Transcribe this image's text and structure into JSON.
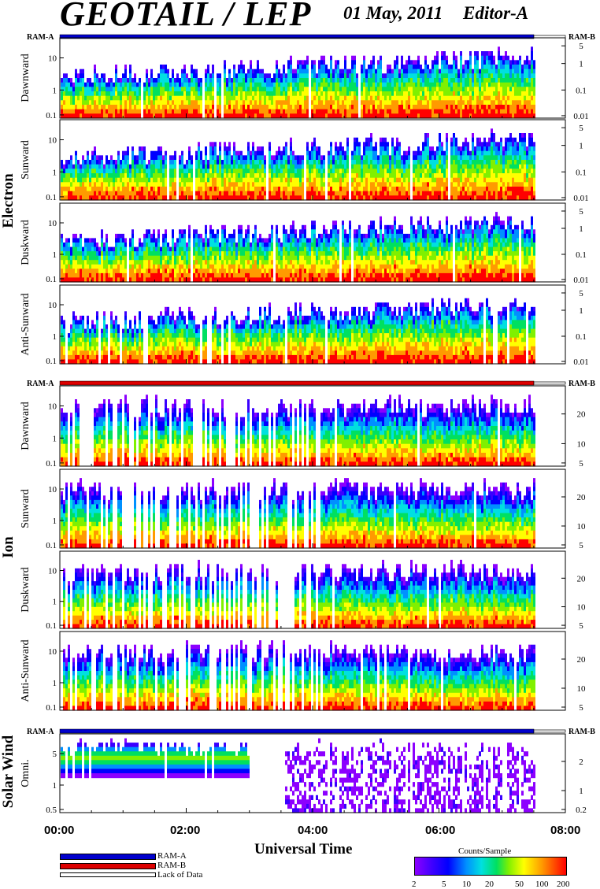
{
  "header": {
    "title": "GEOTAIL / LEP",
    "date": "01 May, 2011",
    "editor": "Editor-A"
  },
  "chart_data": {
    "type": "heatmap",
    "x_axis": {
      "label": "Universal Time",
      "range": [
        "00:00",
        "08:00"
      ],
      "ticks": [
        "00:00",
        "02:00",
        "04:00",
        "06:00",
        "08:00"
      ],
      "data_end": "07:30"
    },
    "groups": [
      {
        "name": "Electron",
        "ram_labels": [
          "RAM-A",
          "RAM-B"
        ],
        "ram_state": "RAM-A",
        "panels": [
          {
            "name": "Dawnward",
            "left_ticks": [
              "10",
              "1",
              "0.1"
            ],
            "right_ticks": [
              "5",
              "1",
              "0.1",
              "0.01"
            ],
            "profile": "electron"
          },
          {
            "name": "Sunward",
            "left_ticks": [
              "10",
              "1",
              "0.1"
            ],
            "right_ticks": [
              "5",
              "1",
              "0.1",
              "0.01"
            ],
            "profile": "electron"
          },
          {
            "name": "Duskward",
            "left_ticks": [
              "10",
              "1",
              "0.1"
            ],
            "right_ticks": [
              "5",
              "1",
              "0.1",
              "0.01"
            ],
            "profile": "electron"
          },
          {
            "name": "Anti-Sunward",
            "left_ticks": [
              "10",
              "1",
              "0.1"
            ],
            "right_ticks": [
              "5",
              "1",
              "0.1",
              "0.01"
            ],
            "profile": "electron"
          }
        ]
      },
      {
        "name": "Ion",
        "ram_labels": [
          "RAM-A",
          "RAM-B"
        ],
        "ram_state": "RAM-B",
        "panels": [
          {
            "name": "Dawnward",
            "left_ticks": [
              "10",
              "1",
              "0.1"
            ],
            "right_ticks": [
              "20",
              "10",
              "5"
            ],
            "profile": "ion"
          },
          {
            "name": "Sunward",
            "left_ticks": [
              "10",
              "1",
              "0.1"
            ],
            "right_ticks": [
              "20",
              "10",
              "5"
            ],
            "profile": "ion"
          },
          {
            "name": "Duskward",
            "left_ticks": [
              "10",
              "1",
              "0.1"
            ],
            "right_ticks": [
              "20",
              "10",
              "5"
            ],
            "profile": "ion"
          },
          {
            "name": "Anti-Sunward",
            "left_ticks": [
              "10",
              "1",
              "0.1"
            ],
            "right_ticks": [
              "20",
              "10",
              "5"
            ],
            "profile": "ion"
          }
        ]
      },
      {
        "name": "Solar Wind",
        "ram_labels": [
          "RAM-A",
          "RAM-B"
        ],
        "ram_state": "RAM-A",
        "panels": [
          {
            "name": "Omni.",
            "left_ticks": [
              "5",
              "1",
              "0.5"
            ],
            "right_ticks": [
              "2",
              "1",
              "0.2"
            ],
            "profile": "solar"
          }
        ]
      }
    ],
    "legend": [
      {
        "label": "RAM-A",
        "color": "#0000cc"
      },
      {
        "label": "RAM-B",
        "color": "#dd0000"
      },
      {
        "label": "Lack of Data",
        "color": "#ffffff"
      }
    ],
    "colorbar": {
      "title": "Counts/Sample",
      "ticks": [
        "2",
        "5",
        "10",
        "20",
        "50",
        "100",
        "200"
      ],
      "range": [
        2,
        200
      ],
      "scale": "log"
    }
  }
}
